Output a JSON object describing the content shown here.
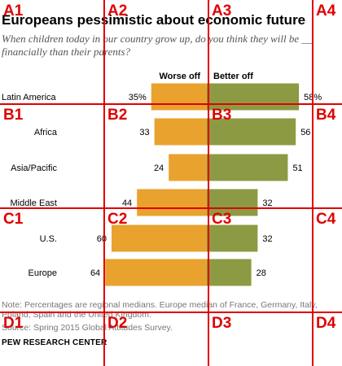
{
  "chart_data": {
    "type": "bar",
    "title": "Europeans pessimistic about economic future",
    "subtitle": "When children today in our country grow up, do you think they will be __ financially than their parents?",
    "categories": [
      "Latin America",
      "Africa",
      "Asia/Pacific",
      "Middle East",
      "U.S.",
      "Europe"
    ],
    "series": [
      {
        "name": "Worse off",
        "color": "#e9a22e",
        "values": [
          35,
          33,
          24,
          44,
          60,
          64
        ],
        "labels": [
          "35%",
          "33",
          "24",
          "44",
          "60",
          "64"
        ]
      },
      {
        "name": "Better off",
        "color": "#8c9b43",
        "values": [
          58,
          56,
          51,
          32,
          32,
          28
        ],
        "labels": [
          "58%",
          "56",
          "51",
          "32",
          "32",
          "28"
        ]
      }
    ],
    "note": "Note: Percentages are regional medians. Europe median of France, Germany, Italy, Poland, Spain and the United Kingdom.",
    "source": "Source: Spring 2015 Global Attitudes Survey.",
    "brand": "PEW RESEARCH CENTER",
    "grid": false,
    "legend": "top"
  },
  "overlay": {
    "colors": {
      "line": "#e00000"
    },
    "labels": [
      "A1",
      "A2",
      "A3",
      "A4",
      "B1",
      "B2",
      "B3",
      "B4",
      "C1",
      "C2",
      "C3",
      "C4",
      "D1",
      "D2",
      "D3",
      "D4"
    ]
  }
}
